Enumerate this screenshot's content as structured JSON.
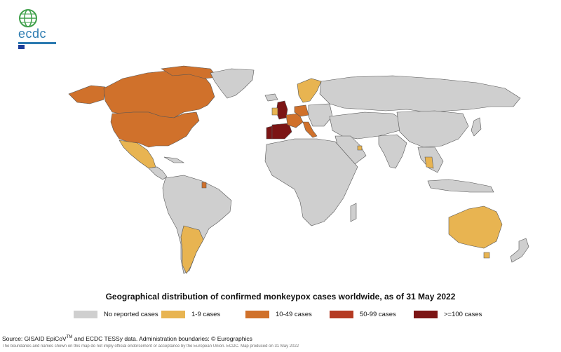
{
  "logo": {
    "text": "ecdc"
  },
  "colors": {
    "none": "#cfcfcf",
    "c1_9": "#e8b451",
    "c10_49": "#d0712b",
    "c50_99": "#b53b23",
    "c100": "#7c1515",
    "border": "#555555"
  },
  "map": {
    "title": "Geographical distribution of confirmed monkeypox cases worldwide, as of 31 May 2022"
  },
  "legend": {
    "items": [
      {
        "label": "No reported cases",
        "color": "#cfcfcf"
      },
      {
        "label": "1-9 cases",
        "color": "#e8b451"
      },
      {
        "label": "10-49 cases",
        "color": "#d0712b"
      },
      {
        "label": "50-99 cases",
        "color": "#b53b23"
      },
      {
        "label": ">=100 cases",
        "color": "#7c1515"
      }
    ]
  },
  "source": {
    "prefix": "Source: GISAID EpiCoV",
    "tm": "TM",
    "suffix": " and ECDC TESSy data. Administration boundaries: © Eurographics"
  },
  "disclaimer": "The boundaries and names shown on this map do not imply official endorsement or acceptance by the European Union. ECDC. Map produced on 31 May 2022"
}
